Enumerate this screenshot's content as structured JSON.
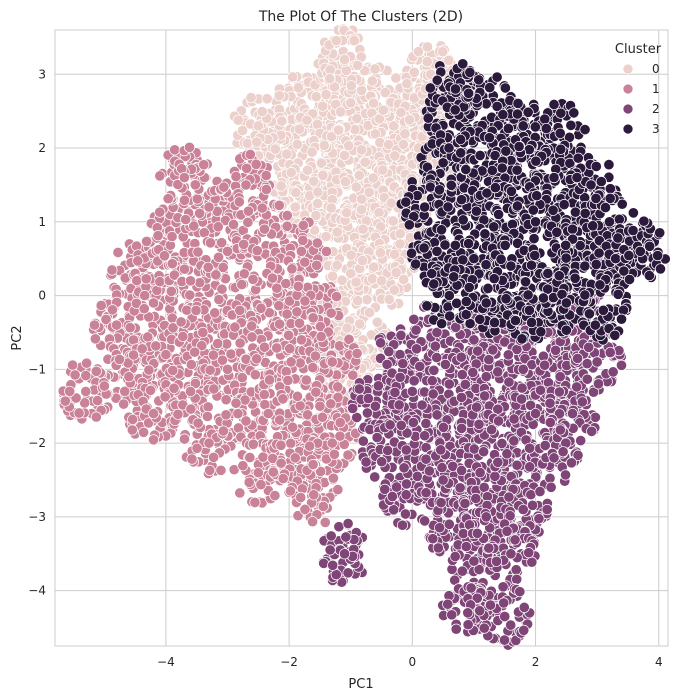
{
  "chart_data": {
    "type": "scatter",
    "title": "The Plot Of The Clusters (2D)",
    "xlabel": "PC1",
    "ylabel": "PC2",
    "xlim": [
      -5.8,
      4.15
    ],
    "ylim": [
      -4.75,
      3.6
    ],
    "xticks": [
      -4,
      -2,
      0,
      2,
      4
    ],
    "yticks": [
      -4,
      -3,
      -2,
      -1,
      0,
      1,
      2,
      3
    ],
    "xtick_labels": [
      "−4",
      "−2",
      "0",
      "2",
      "4"
    ],
    "ytick_labels": [
      "−4",
      "−3",
      "−2",
      "−1",
      "0",
      "1",
      "2",
      "3"
    ],
    "grid": true,
    "legend": {
      "title": "Cluster",
      "placement": "top-right",
      "entries": [
        "0",
        "1",
        "2",
        "3"
      ]
    },
    "colors": {
      "0": "#ebd0cb",
      "1": "#c98297",
      "2": "#7f4577",
      "3": "#2b1a3b",
      "grid": "#cccccc",
      "background": "#ffffff"
    },
    "series": [
      {
        "name": "0",
        "points": [
          [
            -1.8,
            2.6
          ],
          [
            -1.2,
            2.9
          ],
          [
            -0.6,
            2.7
          ],
          [
            -1.5,
            2.2
          ],
          [
            -0.9,
            2.4
          ],
          [
            -0.3,
            2.3
          ],
          [
            0.2,
            2.5
          ],
          [
            -2.3,
            1.9
          ],
          [
            -1.7,
            1.7
          ],
          [
            -1.1,
            1.9
          ],
          [
            -0.5,
            1.8
          ],
          [
            0.1,
            2.0
          ],
          [
            -1.9,
            1.2
          ],
          [
            -1.3,
            1.3
          ],
          [
            -0.7,
            1.4
          ],
          [
            -0.1,
            1.3
          ],
          [
            0.3,
            1.5
          ],
          [
            -1.4,
            0.8
          ],
          [
            -0.8,
            0.9
          ],
          [
            -0.2,
            0.7
          ],
          [
            -1.0,
            0.3
          ],
          [
            -0.5,
            0.2
          ],
          [
            -1.2,
            -0.3
          ],
          [
            -0.8,
            -0.6
          ],
          [
            -1.1,
            -1.0
          ],
          [
            -1.1,
            3.2
          ],
          [
            0.3,
            3.0
          ],
          [
            -2.5,
            2.3
          ]
        ]
      },
      {
        "name": "1",
        "points": [
          [
            -4.5,
            0.3
          ],
          [
            -3.9,
            0.8
          ],
          [
            -3.3,
            1.2
          ],
          [
            -2.7,
            1.5
          ],
          [
            -4.8,
            -0.4
          ],
          [
            -4.2,
            -0.1
          ],
          [
            -3.6,
            0.2
          ],
          [
            -3.0,
            0.6
          ],
          [
            -2.4,
            0.9
          ],
          [
            -1.8,
            0.6
          ],
          [
            -4.6,
            -1.1
          ],
          [
            -4.0,
            -0.8
          ],
          [
            -3.4,
            -0.5
          ],
          [
            -2.8,
            -0.2
          ],
          [
            -2.2,
            0.1
          ],
          [
            -1.6,
            -0.2
          ],
          [
            -4.2,
            -1.6
          ],
          [
            -3.6,
            -1.3
          ],
          [
            -3.0,
            -1.0
          ],
          [
            -2.4,
            -0.7
          ],
          [
            -1.8,
            -0.6
          ],
          [
            -1.3,
            -0.9
          ],
          [
            -3.3,
            -2.0
          ],
          [
            -2.7,
            -1.7
          ],
          [
            -2.1,
            -1.4
          ],
          [
            -1.5,
            -1.5
          ],
          [
            -2.5,
            -2.4
          ],
          [
            -1.9,
            -2.2
          ],
          [
            -1.3,
            -2.0
          ],
          [
            -1.6,
            -2.7
          ],
          [
            -5.3,
            -1.3
          ],
          [
            -3.7,
            1.6
          ]
        ]
      },
      {
        "name": "2",
        "points": [
          [
            -0.2,
            -0.8
          ],
          [
            0.4,
            -0.5
          ],
          [
            1.0,
            -0.6
          ],
          [
            1.6,
            -0.4
          ],
          [
            2.2,
            -0.5
          ],
          [
            2.8,
            -0.3
          ],
          [
            -0.6,
            -1.5
          ],
          [
            0.0,
            -1.3
          ],
          [
            0.6,
            -1.2
          ],
          [
            1.2,
            -1.1
          ],
          [
            1.8,
            -1.0
          ],
          [
            2.4,
            -1.1
          ],
          [
            3.0,
            -0.9
          ],
          [
            -0.4,
            -2.1
          ],
          [
            0.2,
            -1.9
          ],
          [
            0.8,
            -1.8
          ],
          [
            1.4,
            -1.7
          ],
          [
            2.0,
            -1.6
          ],
          [
            2.6,
            -1.6
          ],
          [
            -0.1,
            -2.7
          ],
          [
            0.5,
            -2.5
          ],
          [
            1.1,
            -2.4
          ],
          [
            1.7,
            -2.3
          ],
          [
            2.3,
            -2.2
          ],
          [
            0.6,
            -3.1
          ],
          [
            1.2,
            -3.0
          ],
          [
            1.8,
            -2.9
          ],
          [
            1.0,
            -3.6
          ],
          [
            1.6,
            -3.5
          ],
          [
            1.5,
            -4.35
          ],
          [
            0.9,
            -4.3
          ],
          [
            -1.1,
            -3.5
          ]
        ]
      },
      {
        "name": "3",
        "points": [
          [
            0.6,
            2.5
          ],
          [
            1.2,
            2.6
          ],
          [
            1.8,
            2.3
          ],
          [
            2.4,
            2.2
          ],
          [
            0.5,
            1.8
          ],
          [
            1.1,
            1.9
          ],
          [
            1.7,
            1.7
          ],
          [
            2.3,
            1.6
          ],
          [
            2.9,
            1.5
          ],
          [
            0.2,
            1.2
          ],
          [
            0.8,
            1.3
          ],
          [
            1.4,
            1.1
          ],
          [
            2.0,
            1.0
          ],
          [
            2.6,
            0.9
          ],
          [
            3.2,
            1.0
          ],
          [
            0.4,
            0.6
          ],
          [
            1.0,
            0.5
          ],
          [
            1.6,
            0.4
          ],
          [
            2.2,
            0.3
          ],
          [
            2.8,
            0.4
          ],
          [
            3.3,
            0.5
          ],
          [
            0.6,
            0.0
          ],
          [
            1.2,
            -0.1
          ],
          [
            1.9,
            -0.2
          ],
          [
            2.5,
            -0.1
          ],
          [
            3.1,
            -0.2
          ],
          [
            3.7,
            0.6
          ],
          [
            0.7,
            2.8
          ]
        ]
      }
    ]
  }
}
